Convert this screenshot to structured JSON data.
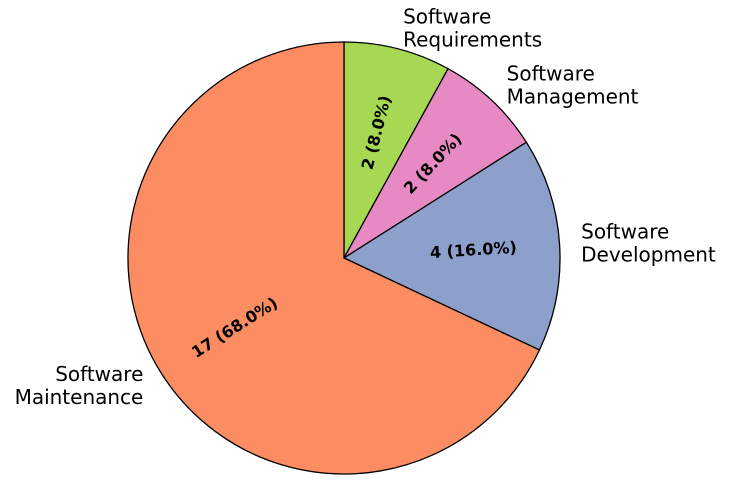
{
  "chart_data": {
    "type": "pie",
    "title": "",
    "start_angle_deg": 90,
    "direction": "clockwise",
    "slices": [
      {
        "label": "Software Requirements",
        "value": 2,
        "percent_text": "2 (8.0%)",
        "color": "#a6d854"
      },
      {
        "label": "Software Management",
        "value": 2,
        "percent_text": "2 (8.0%)",
        "color": "#e78ac3"
      },
      {
        "label": "Software Development",
        "value": 4,
        "percent_text": "4 (16.0%)",
        "color": "#8da0cb"
      },
      {
        "label": "Software Maintenance",
        "value": 17,
        "percent_text": "17 (68.0%)",
        "color": "#fc8d62"
      }
    ]
  }
}
